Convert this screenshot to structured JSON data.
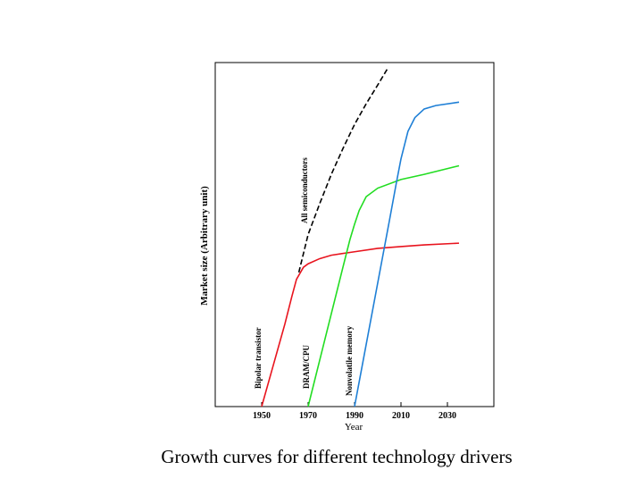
{
  "chart_data": {
    "type": "line",
    "title": "Growth curves for different technology drivers",
    "x_label": "Year",
    "y_label": "Market size (Arbitrary unit)",
    "xlim": [
      1930,
      2050
    ],
    "ylim": [
      0,
      100
    ],
    "xticks": [
      1950,
      1970,
      1990,
      2010,
      2030
    ],
    "series": [
      {
        "name": "Bipolar transistor",
        "color": "#e8141e",
        "dashed": false,
        "x": [
          1950,
          1955,
          1960,
          1963,
          1965,
          1968,
          1970,
          1975,
          1980,
          1990,
          2000,
          2010,
          2020,
          2035
        ],
        "values": [
          0,
          12,
          24,
          32,
          37,
          40.5,
          41.5,
          43,
          44,
          45,
          46,
          46.5,
          47,
          47.5
        ]
      },
      {
        "name": "All semiconductors",
        "color": "#000000",
        "dashed": true,
        "x": [
          1966,
          1970,
          1975,
          1980,
          1985,
          1990,
          1995,
          2000,
          2004
        ],
        "values": [
          39,
          50,
          59,
          67.5,
          75,
          82,
          88,
          93.5,
          98
        ]
      },
      {
        "name": "DRAM/CPU",
        "color": "#22dd22",
        "dashed": false,
        "x": [
          1970,
          1975,
          1980,
          1985,
          1988,
          1990,
          1992,
          1995,
          2000,
          2010,
          2020,
          2035
        ],
        "values": [
          0,
          13.5,
          27,
          40.5,
          48.5,
          53,
          57,
          61,
          63.5,
          66,
          67.5,
          70
        ]
      },
      {
        "name": "Nonvolatile memory",
        "color": "#1e7fd6",
        "dashed": false,
        "x": [
          1990,
          1995,
          2000,
          2005,
          2008,
          2010,
          2013,
          2016,
          2020,
          2025,
          2035
        ],
        "values": [
          0,
          18,
          36,
          54,
          65,
          72,
          80,
          84,
          86.5,
          87.5,
          88.5
        ]
      }
    ]
  }
}
